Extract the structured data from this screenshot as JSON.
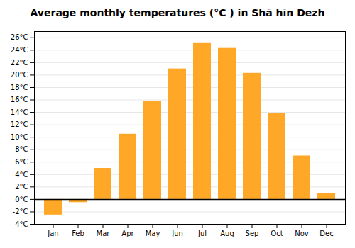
{
  "chart_data": {
    "type": "bar",
    "title": "Average monthly temperatures (°C ) in Shā hīn Dezh",
    "categories": [
      "Jan",
      "Feb",
      "Mar",
      "Apr",
      "May",
      "Jun",
      "Jul",
      "Aug",
      "Sep",
      "Oct",
      "Nov",
      "Dec"
    ],
    "values": [
      -2.5,
      -0.5,
      5.0,
      10.5,
      15.8,
      21.0,
      25.2,
      24.3,
      20.3,
      13.8,
      7.0,
      1.0
    ],
    "color": "#FFA726",
    "ylim": [
      -4,
      27
    ],
    "yticks": [
      {
        "value": -4,
        "label": "-4°C"
      },
      {
        "value": -2,
        "label": "-2°C"
      },
      {
        "value": 0,
        "label": "0°C"
      },
      {
        "value": 2,
        "label": "2°C"
      },
      {
        "value": 4,
        "label": "4°C"
      },
      {
        "value": 6,
        "label": "6°C"
      },
      {
        "value": 8,
        "label": "8°C"
      },
      {
        "value": 10,
        "label": "10°C"
      },
      {
        "value": 12,
        "label": "12°C"
      },
      {
        "value": 14,
        "label": "14°C"
      },
      {
        "value": 16,
        "label": "16°C"
      },
      {
        "value": 18,
        "label": "18°C"
      },
      {
        "value": 20,
        "label": "20°C"
      },
      {
        "value": 22,
        "label": "22°C"
      },
      {
        "value": 24,
        "label": "24°C"
      },
      {
        "value": 26,
        "label": "26°C"
      }
    ],
    "grid": true
  }
}
